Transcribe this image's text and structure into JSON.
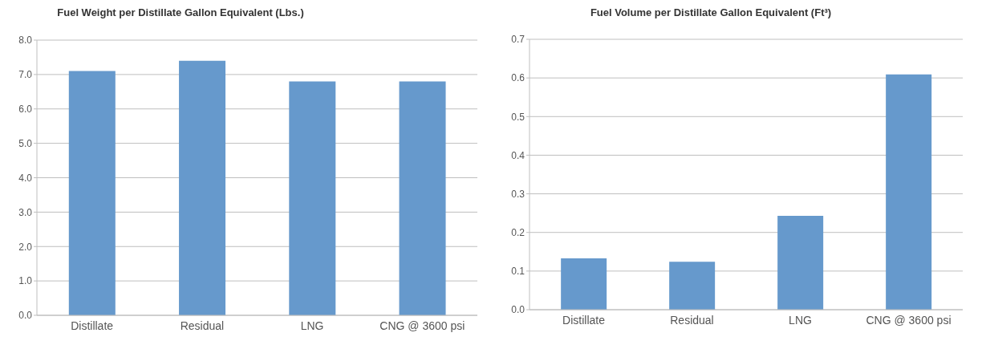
{
  "chart_data": [
    {
      "type": "bar",
      "title": "Fuel Weight per Distillate Gallon Equivalent (Lbs.)",
      "categories": [
        "Distillate",
        "Residual",
        "LNG",
        "CNG @ 3600 psi"
      ],
      "values": [
        7.1,
        7.4,
        6.8,
        6.8
      ],
      "color": "#6699cc",
      "ylim": [
        0,
        8
      ],
      "yticks": [
        {
          "value": 0,
          "label": "0.0"
        },
        {
          "value": 1,
          "label": "1.0"
        },
        {
          "value": 2,
          "label": "2.0"
        },
        {
          "value": 3,
          "label": "3.0"
        },
        {
          "value": 4,
          "label": "4.0"
        },
        {
          "value": 5,
          "label": "5.0"
        },
        {
          "value": 6,
          "label": "6.0"
        },
        {
          "value": 7,
          "label": "7.0"
        },
        {
          "value": 8,
          "label": "8.0"
        }
      ],
      "grid": "y"
    },
    {
      "type": "bar",
      "title": "Fuel Volume per Distillate Gallon Equivalent (Ft³)",
      "categories": [
        "Distillate",
        "Residual",
        "LNG",
        "CNG @ 3600 psi"
      ],
      "values": [
        0.133,
        0.124,
        0.243,
        0.609
      ],
      "color": "#6699cc",
      "ylim": [
        0,
        0.7
      ],
      "yticks": [
        {
          "value": 0,
          "label": "0.0"
        },
        0.1,
        0.2,
        0.3,
        0.4,
        0.5,
        0.6,
        0.7
      ],
      "grid": "y"
    }
  ]
}
